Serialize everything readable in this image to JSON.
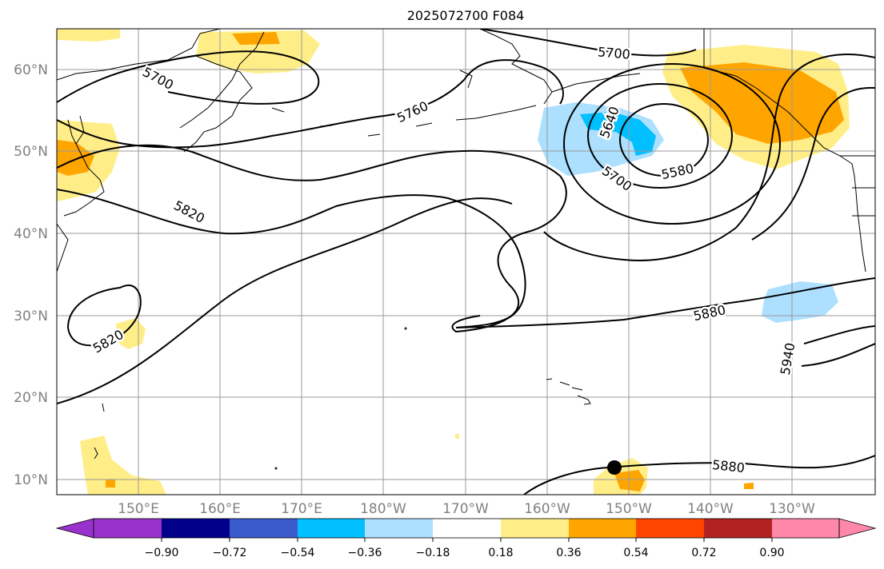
{
  "title": "2025072700 F084",
  "lat_labels": [
    "60°N",
    "50°N",
    "40°N",
    "30°N",
    "20°N",
    "10°N"
  ],
  "lon_labels": [
    "150°E",
    "160°E",
    "170°E",
    "180°W",
    "170°W",
    "160°W",
    "150°W",
    "140°W",
    "130°W"
  ],
  "contour_labels": [
    "5700",
    "5760",
    "5700",
    "5640",
    "5580",
    "5700",
    "5820",
    "5820",
    "5880",
    "5940",
    "5880"
  ],
  "colorbar": {
    "ticks": [
      "−0.90",
      "−0.72",
      "−0.54",
      "−0.36",
      "−0.18",
      "0.18",
      "0.36",
      "0.54",
      "0.72",
      "0.90"
    ],
    "colors": [
      "#9932CC",
      "#00008B",
      "#3A5BCB",
      "#00BFFF",
      "#ADDFFF",
      "#FFFFFF",
      "#FFEE88",
      "#FFA500",
      "#FF4500",
      "#B22222",
      "#FF88AA"
    ]
  },
  "colors": {
    "light_yellow": "#FFEE88",
    "orange": "#FFA500",
    "light_blue": "#ADDFFF",
    "cyan": "#00BFFF",
    "grid": "#9a9a9a"
  }
}
